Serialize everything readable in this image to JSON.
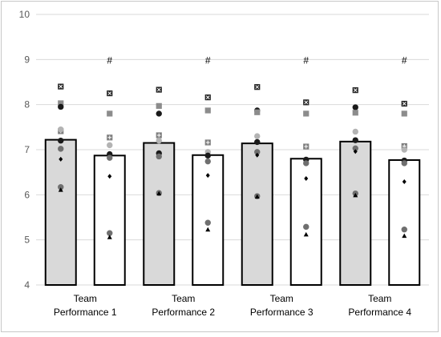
{
  "chart_data": {
    "type": "bar",
    "title": "",
    "xlabel": "",
    "ylabel": "",
    "ylim": [
      4,
      10
    ],
    "yticks": [
      "4",
      "5",
      "6",
      "7",
      "8",
      "9",
      "10"
    ],
    "grid": true,
    "colors": {
      "filled_bar": "#d9d9d9",
      "outline_bar": "#ffffff",
      "bar_stroke": "#000000",
      "grid": "#d9d9d9"
    },
    "categories": [
      "Team Performance 1",
      "Team Performance 2",
      "Team Performance 3",
      "Team Performance 4"
    ],
    "category_lines": [
      [
        "Team",
        "Performance 1"
      ],
      [
        "Team",
        "Performance 2"
      ],
      [
        "Team",
        "Performance 3"
      ],
      [
        "Team",
        "Performance 4"
      ]
    ],
    "series": [
      {
        "values": [
          7.22,
          7.15,
          7.14,
          7.18
        ],
        "style": "filled"
      },
      {
        "values": [
          6.87,
          6.88,
          6.8,
          6.77
        ],
        "style": "outline",
        "annotation": "#"
      }
    ],
    "points": [
      [
        {
          "bar": 0,
          "markers": [
            [
              "x-square",
              8.4
            ],
            [
              "square",
              8.03
            ],
            [
              "circle-dark",
              7.95
            ],
            [
              "plus-square",
              7.41
            ],
            [
              "circle-light",
              7.45
            ],
            [
              "circle-dark",
              7.2
            ],
            [
              "circle-mid",
              7.02
            ],
            [
              "diamond",
              6.79
            ],
            [
              "circle-mid",
              6.17
            ],
            [
              "triangle",
              6.11
            ]
          ]
        },
        {
          "bar": 1,
          "markers": [
            [
              "x-square",
              8.25
            ],
            [
              "square",
              7.8
            ],
            [
              "plus-square",
              7.27
            ],
            [
              "circle-light",
              7.1
            ],
            [
              "circle-dark",
              6.9
            ],
            [
              "circle-mid",
              6.82
            ],
            [
              "diamond",
              6.41
            ],
            [
              "circle-mid",
              5.15
            ],
            [
              "triangle",
              5.06
            ]
          ]
        }
      ],
      [
        {
          "bar": 0,
          "markers": [
            [
              "x-square",
              8.33
            ],
            [
              "square",
              7.97
            ],
            [
              "circle-dark",
              7.8
            ],
            [
              "plus-square",
              7.32
            ],
            [
              "circle-light",
              7.2
            ],
            [
              "circle-dark",
              6.92
            ],
            [
              "circle-mid",
              6.85
            ],
            [
              "circle-mid",
              6.04
            ],
            [
              "triangle",
              6.03
            ]
          ]
        },
        {
          "bar": 1,
          "markers": [
            [
              "x-square",
              8.16
            ],
            [
              "square",
              7.87
            ],
            [
              "plus-square",
              7.16
            ],
            [
              "circle-light",
              6.95
            ],
            [
              "circle-dark",
              6.87
            ],
            [
              "circle-mid",
              6.74
            ],
            [
              "diamond",
              6.43
            ],
            [
              "circle-mid",
              5.38
            ],
            [
              "triangle",
              5.23
            ]
          ]
        }
      ],
      [
        {
          "bar": 0,
          "markers": [
            [
              "x-square",
              8.39
            ],
            [
              "circle-dark",
              7.87
            ],
            [
              "square",
              7.83
            ],
            [
              "circle-light",
              7.3
            ],
            [
              "circle-dark",
              7.17
            ],
            [
              "circle-mid",
              6.95
            ],
            [
              "diamond",
              6.88
            ],
            [
              "circle-mid",
              5.97
            ],
            [
              "triangle",
              5.96
            ]
          ]
        },
        {
          "bar": 1,
          "markers": [
            [
              "x-square",
              8.05
            ],
            [
              "square",
              7.8
            ],
            [
              "plus-square",
              7.07
            ],
            [
              "circle-dark",
              6.78
            ],
            [
              "circle-mid",
              6.7
            ],
            [
              "diamond",
              6.36
            ],
            [
              "circle-mid",
              5.29
            ],
            [
              "triangle",
              5.12
            ]
          ]
        }
      ],
      [
        {
          "bar": 0,
          "markers": [
            [
              "x-square",
              8.32
            ],
            [
              "circle-dark",
              7.94
            ],
            [
              "square",
              7.82
            ],
            [
              "circle-light",
              7.4
            ],
            [
              "circle-dark",
              7.21
            ],
            [
              "circle-mid",
              7.03
            ],
            [
              "diamond",
              6.96
            ],
            [
              "circle-mid",
              6.03
            ],
            [
              "triangle",
              5.99
            ]
          ]
        },
        {
          "bar": 1,
          "markers": [
            [
              "x-square",
              8.02
            ],
            [
              "square",
              7.8
            ],
            [
              "plus-square",
              7.08
            ],
            [
              "circle-light",
              7.0
            ],
            [
              "circle-dark",
              6.76
            ],
            [
              "circle-mid",
              6.7
            ],
            [
              "diamond",
              6.29
            ],
            [
              "circle-mid",
              5.23
            ],
            [
              "triangle",
              5.09
            ]
          ]
        }
      ]
    ]
  }
}
